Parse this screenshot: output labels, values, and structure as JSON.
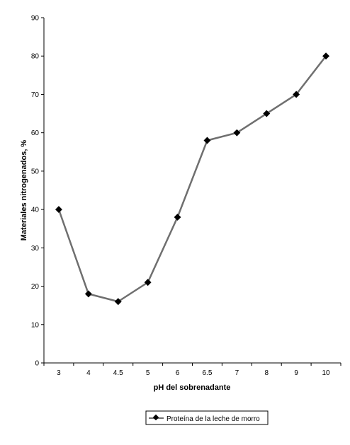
{
  "chart_data": {
    "type": "line",
    "categories": [
      "3",
      "4",
      "4.5",
      "5",
      "6",
      "6.5",
      "7",
      "8",
      "9",
      "10"
    ],
    "series": [
      {
        "name": "Proteína de la leche de morro",
        "values": [
          40,
          18,
          16,
          21,
          38,
          58,
          60,
          65,
          70,
          80
        ],
        "color": "#6f6f6f",
        "marker_color": "#000000"
      }
    ],
    "xlabel": "pH del sobrenadante",
    "ylabel": "Materiales nitrogenados, %",
    "ylim": [
      0,
      90
    ],
    "yticks": [
      0,
      10,
      20,
      30,
      40,
      50,
      60,
      70,
      80,
      90
    ],
    "grid": false,
    "legend": "bottom"
  }
}
